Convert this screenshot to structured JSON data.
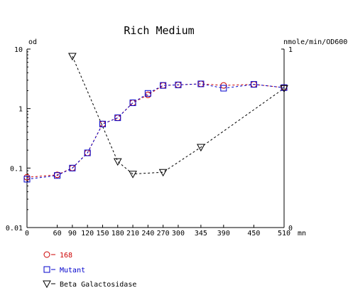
{
  "chart_data": {
    "type": "line",
    "title": "Rich Medium",
    "y_left_label": "od",
    "y_right_label": "nmole/min/OD600",
    "x_unit": "mn",
    "x_ticks": [
      0,
      60,
      90,
      120,
      150,
      180,
      210,
      240,
      270,
      300,
      345,
      390,
      450,
      510
    ],
    "y_left_ticks": [
      "10",
      "1",
      "0.1",
      "0.01"
    ],
    "y_left_scale": "log",
    "y_left_lim": [
      0.01,
      10
    ],
    "y_right_ticks": [
      "1",
      "0"
    ],
    "y_right_lim": [
      0,
      1
    ],
    "x_lim": [
      0,
      510
    ],
    "grid": false,
    "legend_position": "bottom-left",
    "series": [
      {
        "name": "168",
        "axis": "left",
        "color": "#cc0000",
        "marker": "circle",
        "dash": "3,3",
        "x": [
          0,
          60,
          90,
          120,
          150,
          180,
          210,
          240,
          270,
          300,
          345,
          390,
          450,
          510
        ],
        "y": [
          0.07,
          0.077,
          0.1,
          0.18,
          0.55,
          0.7,
          1.25,
          1.7,
          2.45,
          2.5,
          2.6,
          2.45,
          2.55,
          2.25
        ]
      },
      {
        "name": "Mutant",
        "axis": "left",
        "color": "#0000cc",
        "marker": "square",
        "dash": "3,3",
        "x": [
          0,
          60,
          90,
          120,
          150,
          180,
          210,
          240,
          270,
          300,
          345,
          390,
          450,
          510
        ],
        "y": [
          0.065,
          0.075,
          0.1,
          0.18,
          0.55,
          0.7,
          1.25,
          1.8,
          2.45,
          2.5,
          2.6,
          2.2,
          2.55,
          2.25
        ]
      },
      {
        "name": "Beta Galactosidase",
        "axis": "right",
        "color": "#000000",
        "marker": "triangle-down",
        "dash": "3,3",
        "x": [
          90,
          180,
          210,
          270,
          345,
          510
        ],
        "y": [
          0.96,
          0.37,
          0.3,
          0.31,
          0.45,
          0.78
        ]
      }
    ]
  }
}
